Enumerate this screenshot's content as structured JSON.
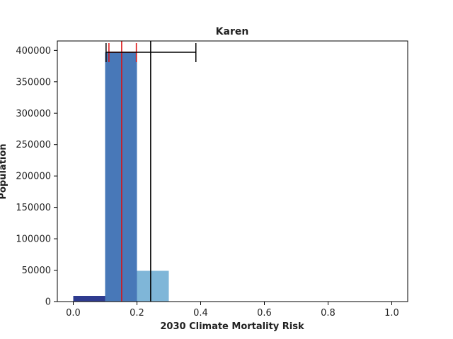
{
  "chart_data": {
    "type": "bar",
    "title": "Karen",
    "xlabel": "2030 Climate Mortality Risk",
    "ylabel": "Population",
    "xlim": [
      -0.05,
      1.05
    ],
    "ylim": [
      0,
      415000
    ],
    "xticks": [
      0.0,
      0.2,
      0.4,
      0.6,
      0.8,
      1.0
    ],
    "xtick_labels": [
      "0.0",
      "0.2",
      "0.4",
      "0.6",
      "0.8",
      "1.0"
    ],
    "yticks": [
      0,
      50000,
      100000,
      150000,
      200000,
      250000,
      300000,
      350000,
      400000
    ],
    "ytick_labels": [
      "0",
      "50000",
      "100000",
      "150000",
      "200000",
      "250000",
      "300000",
      "350000",
      "400000"
    ],
    "grid": false,
    "bars": [
      {
        "x0": 0.0,
        "x1": 0.1,
        "value": 9000,
        "color": "#2e3b8f"
      },
      {
        "x0": 0.1,
        "x1": 0.2,
        "value": 397000,
        "color": "#4878b8"
      },
      {
        "x0": 0.2,
        "x1": 0.3,
        "value": 49000,
        "color": "#7fb6d8"
      }
    ],
    "vlines": [
      {
        "x": 0.152,
        "color": "#dd1111"
      },
      {
        "x": 0.243,
        "color": "#000000"
      }
    ],
    "error_bars": [
      {
        "center": 0.153,
        "low": 0.112,
        "high": 0.198,
        "y": 397000,
        "color": "#dd1111"
      },
      {
        "center": 0.243,
        "low": 0.103,
        "high": 0.385,
        "y": 397000,
        "color": "#000000"
      }
    ]
  }
}
